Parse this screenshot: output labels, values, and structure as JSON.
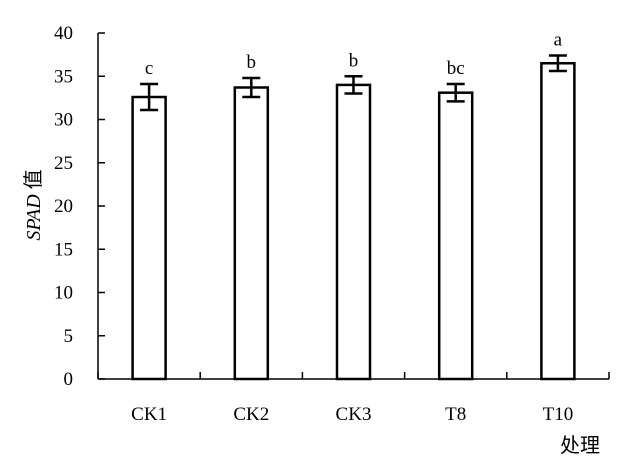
{
  "chart_data": {
    "type": "bar",
    "categories": [
      "CK1",
      "CK2",
      "CK3",
      "T8",
      "T10"
    ],
    "values": [
      32.6,
      33.7,
      34.0,
      33.1,
      36.5
    ],
    "errors": [
      1.5,
      1.1,
      1.0,
      1.0,
      0.9
    ],
    "significance": [
      "c",
      "b",
      "b",
      "bc",
      "a"
    ],
    "ylim": [
      0,
      40
    ],
    "yticks": [
      0,
      5,
      10,
      15,
      20,
      25,
      30,
      35,
      40
    ],
    "ylabel_italic": "SPAD",
    "ylabel_rest": " 值",
    "xlabel": "处理",
    "grid": false,
    "colors": {
      "bar_fill": "#ffffff",
      "stroke": "#000000"
    }
  }
}
